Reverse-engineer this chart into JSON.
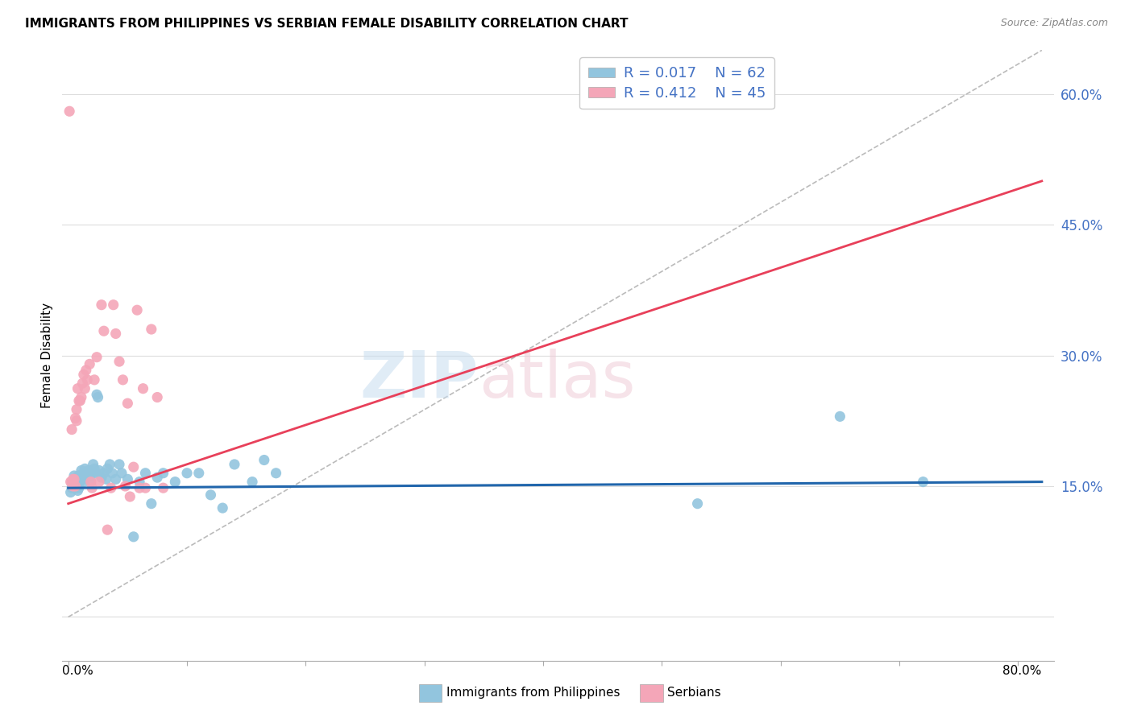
{
  "title": "IMMIGRANTS FROM PHILIPPINES VS SERBIAN FEMALE DISABILITY CORRELATION CHART",
  "source": "Source: ZipAtlas.com",
  "ylabel": "Female Disability",
  "y_ticks": [
    0.0,
    0.15,
    0.3,
    0.45,
    0.6
  ],
  "y_tick_labels": [
    "",
    "15.0%",
    "30.0%",
    "45.0%",
    "60.0%"
  ],
  "x_ticks": [
    0.0,
    0.1,
    0.2,
    0.3,
    0.4,
    0.5,
    0.6,
    0.7,
    0.8
  ],
  "x_tick_labels": [
    "",
    "",
    "",
    "",
    "",
    "",
    "",
    "",
    ""
  ],
  "x_left_label": "0.0%",
  "x_right_label": "80.0%",
  "xlim": [
    -0.005,
    0.83
  ],
  "ylim": [
    -0.05,
    0.65
  ],
  "color_blue": "#92c5de",
  "color_pink": "#f4a6b8",
  "color_blue_dark": "#2166ac",
  "color_pink_dark": "#e8405a",
  "color_blue_text": "#4472C4",
  "line_dashed_color": "#bbbbbb",
  "grid_color": "#dddddd",
  "philippines_x": [
    0.002,
    0.003,
    0.004,
    0.005,
    0.005,
    0.006,
    0.006,
    0.007,
    0.007,
    0.007,
    0.008,
    0.008,
    0.009,
    0.009,
    0.01,
    0.01,
    0.011,
    0.011,
    0.012,
    0.013,
    0.013,
    0.014,
    0.015,
    0.016,
    0.017,
    0.018,
    0.019,
    0.02,
    0.021,
    0.022,
    0.023,
    0.024,
    0.025,
    0.026,
    0.028,
    0.03,
    0.032,
    0.033,
    0.035,
    0.037,
    0.04,
    0.043,
    0.045,
    0.05,
    0.055,
    0.06,
    0.065,
    0.07,
    0.075,
    0.08,
    0.09,
    0.1,
    0.11,
    0.12,
    0.13,
    0.14,
    0.155,
    0.165,
    0.175,
    0.53,
    0.65,
    0.72
  ],
  "philippines_y": [
    0.143,
    0.148,
    0.152,
    0.155,
    0.162,
    0.15,
    0.158,
    0.148,
    0.155,
    0.16,
    0.153,
    0.145,
    0.148,
    0.162,
    0.156,
    0.16,
    0.163,
    0.168,
    0.158,
    0.165,
    0.155,
    0.17,
    0.165,
    0.163,
    0.168,
    0.162,
    0.155,
    0.165,
    0.175,
    0.17,
    0.165,
    0.255,
    0.252,
    0.168,
    0.16,
    0.165,
    0.158,
    0.17,
    0.175,
    0.165,
    0.158,
    0.175,
    0.165,
    0.158,
    0.092,
    0.155,
    0.165,
    0.13,
    0.16,
    0.165,
    0.155,
    0.165,
    0.165,
    0.14,
    0.125,
    0.175,
    0.155,
    0.18,
    0.165,
    0.13,
    0.23,
    0.155
  ],
  "serbians_x": [
    0.001,
    0.002,
    0.003,
    0.003,
    0.004,
    0.004,
    0.005,
    0.006,
    0.006,
    0.007,
    0.007,
    0.008,
    0.009,
    0.01,
    0.011,
    0.012,
    0.013,
    0.014,
    0.015,
    0.016,
    0.018,
    0.019,
    0.02,
    0.022,
    0.024,
    0.026,
    0.028,
    0.03,
    0.033,
    0.036,
    0.038,
    0.04,
    0.043,
    0.046,
    0.048,
    0.05,
    0.052,
    0.055,
    0.058,
    0.06,
    0.063,
    0.065,
    0.07,
    0.075,
    0.08
  ],
  "serbians_y": [
    0.58,
    0.155,
    0.155,
    0.215,
    0.15,
    0.158,
    0.158,
    0.228,
    0.15,
    0.238,
    0.225,
    0.262,
    0.248,
    0.248,
    0.252,
    0.268,
    0.278,
    0.262,
    0.283,
    0.272,
    0.29,
    0.155,
    0.148,
    0.272,
    0.298,
    0.155,
    0.358,
    0.328,
    0.1,
    0.148,
    0.358,
    0.325,
    0.293,
    0.272,
    0.15,
    0.245,
    0.138,
    0.172,
    0.352,
    0.148,
    0.262,
    0.148,
    0.33,
    0.252,
    0.148
  ]
}
